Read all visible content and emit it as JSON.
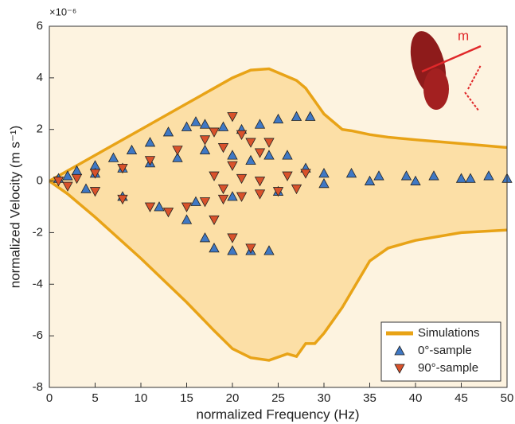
{
  "chart_data": {
    "type": "scatter",
    "x_label": "normalized Frequency (Hz)",
    "y_label": "normalized Velocity (m s⁻¹)",
    "y_exponent": "×10⁻⁶",
    "inset_label": "m",
    "xlim": [
      0,
      50
    ],
    "ylim": [
      -8,
      6
    ],
    "xticks": [
      0,
      5,
      10,
      15,
      20,
      25,
      30,
      35,
      40,
      45,
      50
    ],
    "yticks": [
      -8,
      -6,
      -4,
      -2,
      0,
      2,
      4,
      6
    ],
    "legend": "lower right",
    "series": [
      {
        "name": "Simulations",
        "color": "#e8a317",
        "fill": "#fcdfa6",
        "x": [
          0,
          2,
          5,
          10,
          15,
          18,
          20,
          22,
          24,
          26,
          27,
          28,
          29,
          30,
          31,
          32,
          33,
          35,
          37,
          40,
          45,
          50
        ],
        "values": [
          0,
          0.4,
          1,
          2,
          3,
          3.6,
          4,
          4.3,
          4.35,
          4.05,
          3.9,
          3.6,
          3.1,
          2.6,
          2.3,
          2.0,
          1.95,
          1.8,
          1.7,
          1.6,
          1.45,
          1.3
        ],
        "lower": [
          0,
          -0.5,
          -1.4,
          -3,
          -4.7,
          -5.8,
          -6.5,
          -6.85,
          -6.95,
          -6.7,
          -6.8,
          -6.3,
          -6.3,
          -5.9,
          -5.4,
          -4.9,
          -4.3,
          -3.1,
          -2.6,
          -2.3,
          -2.0,
          -1.9
        ]
      },
      {
        "name": "0°-sample",
        "color": "#3f78c4",
        "marker": "triangle-up",
        "x": [
          1,
          2,
          3,
          5,
          7,
          9,
          11,
          13,
          15,
          16,
          17,
          19,
          21,
          23,
          25,
          27,
          28.5,
          5,
          8,
          11,
          14,
          17,
          20,
          22,
          24,
          26,
          28,
          30,
          33,
          36,
          39,
          42,
          45,
          48,
          50,
          4,
          8,
          12,
          15,
          17,
          18,
          20,
          22,
          24,
          16,
          20,
          25,
          30,
          35,
          40,
          46
        ],
        "values": [
          0.1,
          0.2,
          0.4,
          0.6,
          0.9,
          1.2,
          1.5,
          1.9,
          2.1,
          2.3,
          2.2,
          2.1,
          2.0,
          2.2,
          2.4,
          2.5,
          2.5,
          0.3,
          0.5,
          0.7,
          0.9,
          1.2,
          1.0,
          0.8,
          1.0,
          1.0,
          0.5,
          0.3,
          0.3,
          0.2,
          0.2,
          0.2,
          0.1,
          0.2,
          0.1,
          -0.3,
          -0.6,
          -1.0,
          -1.5,
          -2.2,
          -2.6,
          -2.7,
          -2.7,
          -2.7,
          -0.8,
          -0.6,
          -0.4,
          -0.1,
          0,
          0,
          0.1
        ]
      },
      {
        "name": "90°-sample",
        "color": "#d9522b",
        "marker": "triangle-down",
        "x": [
          1,
          3,
          5,
          8,
          11,
          14,
          17,
          18,
          20,
          21,
          19,
          22,
          23,
          24,
          20,
          18,
          2,
          5,
          8,
          11,
          13,
          15,
          17,
          19,
          21,
          23,
          25,
          27,
          18,
          20,
          22,
          19,
          21,
          23,
          26,
          28
        ],
        "values": [
          0,
          0.1,
          0.3,
          0.5,
          0.8,
          1.2,
          1.6,
          1.9,
          2.5,
          1.8,
          1.3,
          1.5,
          1.1,
          1.5,
          0.6,
          0.2,
          -0.2,
          -0.4,
          -0.7,
          -1.0,
          -1.2,
          -1.0,
          -0.8,
          -0.7,
          -0.6,
          -0.5,
          -0.4,
          -0.3,
          -1.5,
          -2.2,
          -2.6,
          -0.3,
          0.1,
          0,
          0.2,
          0.3
        ]
      }
    ]
  }
}
